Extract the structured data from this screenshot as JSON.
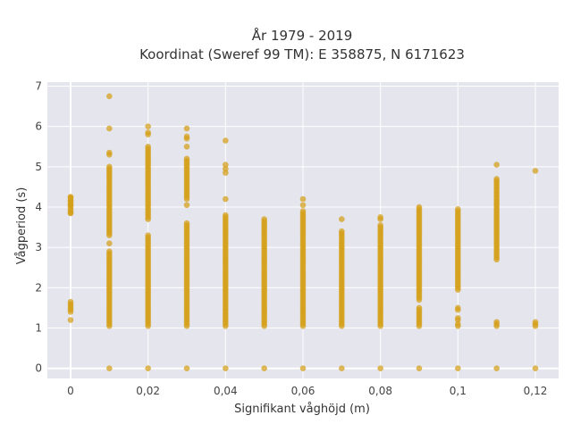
{
  "chart_data": {
    "type": "scatter",
    "title": "År 1979 - 2019",
    "subtitle": "Koordinat (Sweref 99 TM): E 358875, N 6171623",
    "xlabel": "Signifikant våghöjd (m)",
    "ylabel": "Vågperiod (s)",
    "xlim": [
      -0.006,
      0.126
    ],
    "ylim": [
      -0.25,
      7.1
    ],
    "x_ticks": [
      "0",
      "0,02",
      "0,04",
      "0,06",
      "0,08",
      "0,1",
      "0,12"
    ],
    "x_tick_values": [
      0,
      0.02,
      0.04,
      0.06,
      0.08,
      0.1,
      0.12
    ],
    "y_ticks": [
      "0",
      "1",
      "2",
      "3",
      "4",
      "5",
      "6",
      "7"
    ],
    "y_tick_values": [
      0,
      1,
      2,
      3,
      4,
      5,
      6,
      7
    ],
    "grid": true,
    "marker_color": "#D4A017",
    "plot_background": "#E5E5EE",
    "columns": [
      {
        "x": 0,
        "segments": [
          [
            1.4,
            1.65
          ],
          [
            3.85,
            4.25
          ]
        ],
        "points": [
          1.2,
          3.85,
          4.05,
          4.15,
          4.25
        ]
      },
      {
        "x": 0.01,
        "segments": [
          [
            1.05,
            2.9
          ],
          [
            3.3,
            5.0
          ]
        ],
        "points": [
          0,
          3.1,
          5.3,
          5.35,
          5.95,
          6.75
        ]
      },
      {
        "x": 0.02,
        "segments": [
          [
            1.05,
            3.3
          ],
          [
            3.7,
            5.5
          ]
        ],
        "points": [
          0,
          5.8,
          5.85,
          6.0
        ]
      },
      {
        "x": 0.03,
        "segments": [
          [
            1.05,
            3.6
          ],
          [
            4.2,
            5.2
          ]
        ],
        "points": [
          0,
          4.05,
          5.5,
          5.7,
          5.75,
          5.95
        ]
      },
      {
        "x": 0.04,
        "segments": [
          [
            1.05,
            3.8
          ]
        ],
        "points": [
          0,
          4.2,
          4.85,
          4.95,
          5.05,
          5.65
        ]
      },
      {
        "x": 0.05,
        "segments": [
          [
            1.05,
            3.7
          ]
        ],
        "points": [
          0
        ]
      },
      {
        "x": 0.06,
        "segments": [
          [
            1.05,
            3.9
          ]
        ],
        "points": [
          0,
          4.05,
          4.2
        ]
      },
      {
        "x": 0.07,
        "segments": [
          [
            1.05,
            3.4
          ]
        ],
        "points": [
          0,
          3.7
        ]
      },
      {
        "x": 0.08,
        "segments": [
          [
            1.05,
            3.55
          ]
        ],
        "points": [
          0,
          3.7,
          3.75
        ]
      },
      {
        "x": 0.09,
        "segments": [
          [
            1.05,
            1.5
          ],
          [
            1.7,
            4.0
          ]
        ],
        "points": [
          0
        ]
      },
      {
        "x": 0.1,
        "segments": [
          [
            1.95,
            3.95
          ]
        ],
        "points": [
          0,
          1.05,
          1.1,
          1.2,
          1.25,
          1.45,
          1.5
        ]
      },
      {
        "x": 0.11,
        "segments": [
          [
            2.7,
            4.7
          ]
        ],
        "points": [
          0,
          1.05,
          1.1,
          1.15,
          5.05
        ]
      },
      {
        "x": 0.12,
        "segments": [],
        "points": [
          0,
          1.05,
          1.1,
          1.15,
          4.9
        ]
      }
    ]
  }
}
